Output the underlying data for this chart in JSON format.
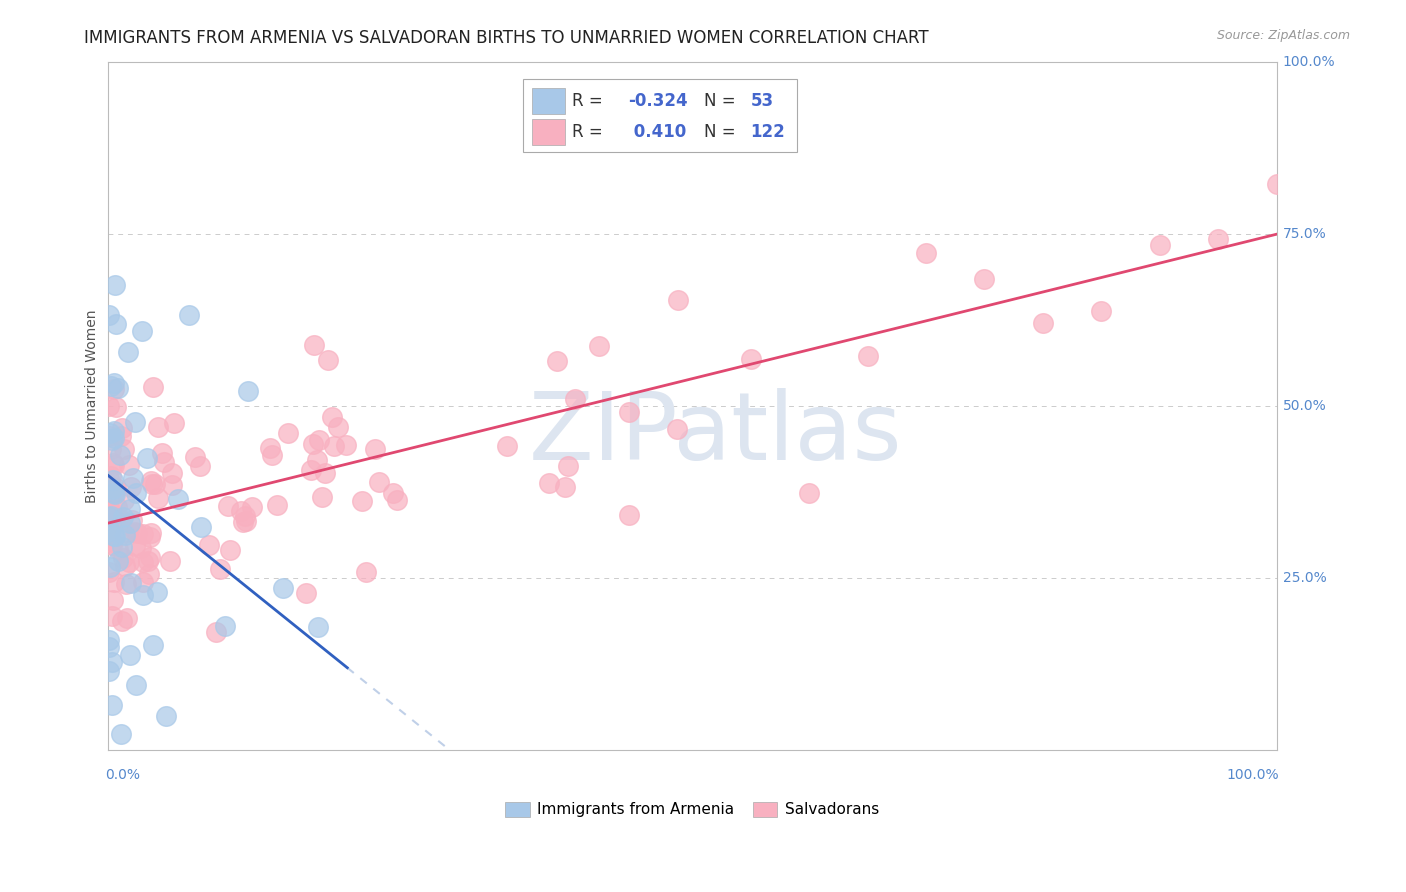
{
  "title": "IMMIGRANTS FROM ARMENIA VS SALVADORAN BIRTHS TO UNMARRIED WOMEN CORRELATION CHART",
  "source": "Source: ZipAtlas.com",
  "ylabel": "Births to Unmarried Women",
  "watermark": "ZIPatlas",
  "legend_blue_label": "Immigrants from Armenia",
  "legend_pink_label": "Salvadorans",
  "legend_blue_R": "-0.324",
  "legend_blue_N": "53",
  "legend_pink_R": "0.410",
  "legend_pink_N": "122",
  "blue_scatter_color": "#a8c8e8",
  "pink_scatter_color": "#f8b0c0",
  "blue_line_color": "#3060c0",
  "pink_line_color": "#e04870",
  "blue_line_dashed_color": "#c0d0e8",
  "background_color": "#ffffff",
  "grid_color": "#cccccc",
  "watermark_color": "#dde5f0",
  "title_fontsize": 12,
  "axis_fontsize": 10,
  "legend_fontsize": 12,
  "right_label_color": "#5588cc",
  "bottom_label_color": "#5588cc"
}
